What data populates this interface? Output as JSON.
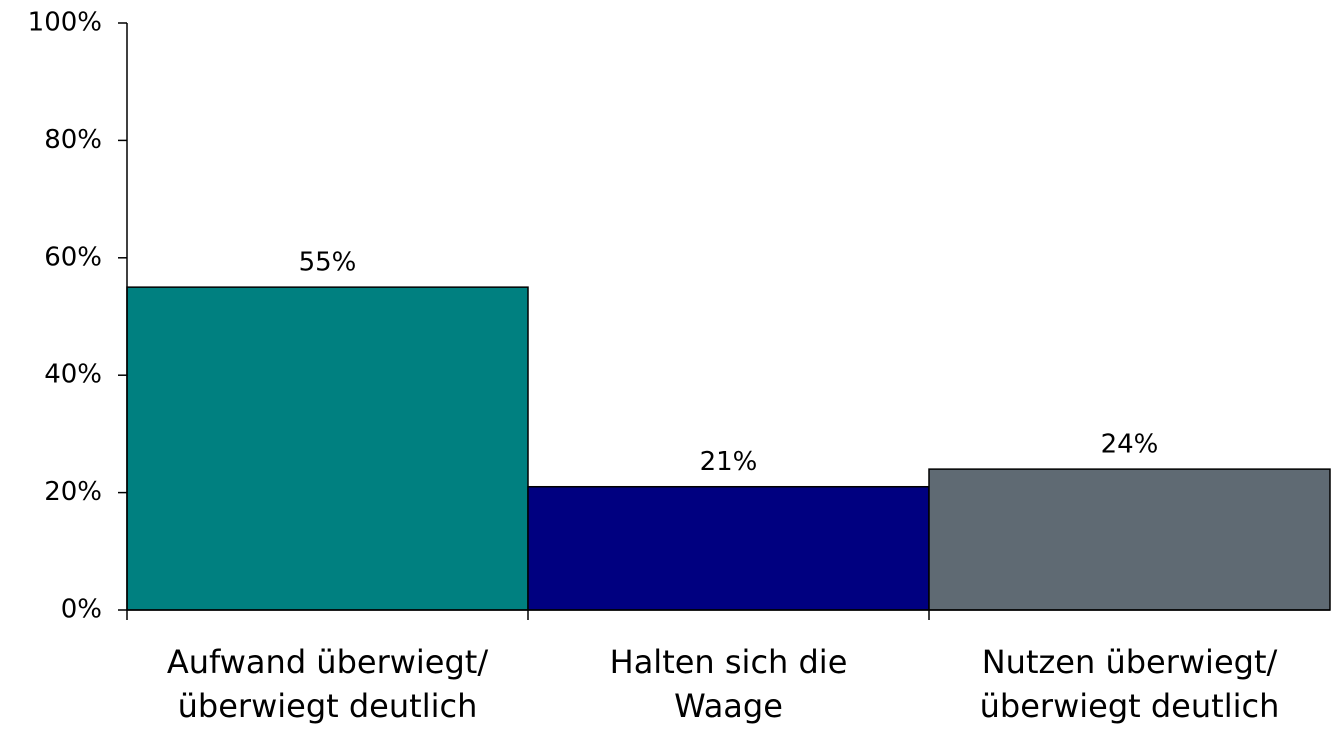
{
  "chart_data": {
    "type": "bar",
    "categories": [
      "Aufwand überwiegt/\nüberwiegt deutlich",
      "Halten sich die\nWaage",
      "Nutzen überwiegt/\nüberwiegt deutlich"
    ],
    "values": [
      55,
      21,
      24
    ],
    "value_labels": [
      "55%",
      "21%",
      "24%"
    ],
    "colors": [
      "#008080",
      "#000080",
      "#5f6a73"
    ],
    "ylim": [
      0,
      100
    ],
    "yticks": [
      {
        "value": 0,
        "label": "0%"
      },
      {
        "value": 20,
        "label": "20%"
      },
      {
        "value": 40,
        "label": "40%"
      },
      {
        "value": 60,
        "label": "60%"
      },
      {
        "value": 80,
        "label": "80%"
      },
      {
        "value": 100,
        "label": "100%"
      }
    ],
    "grid": false
  }
}
